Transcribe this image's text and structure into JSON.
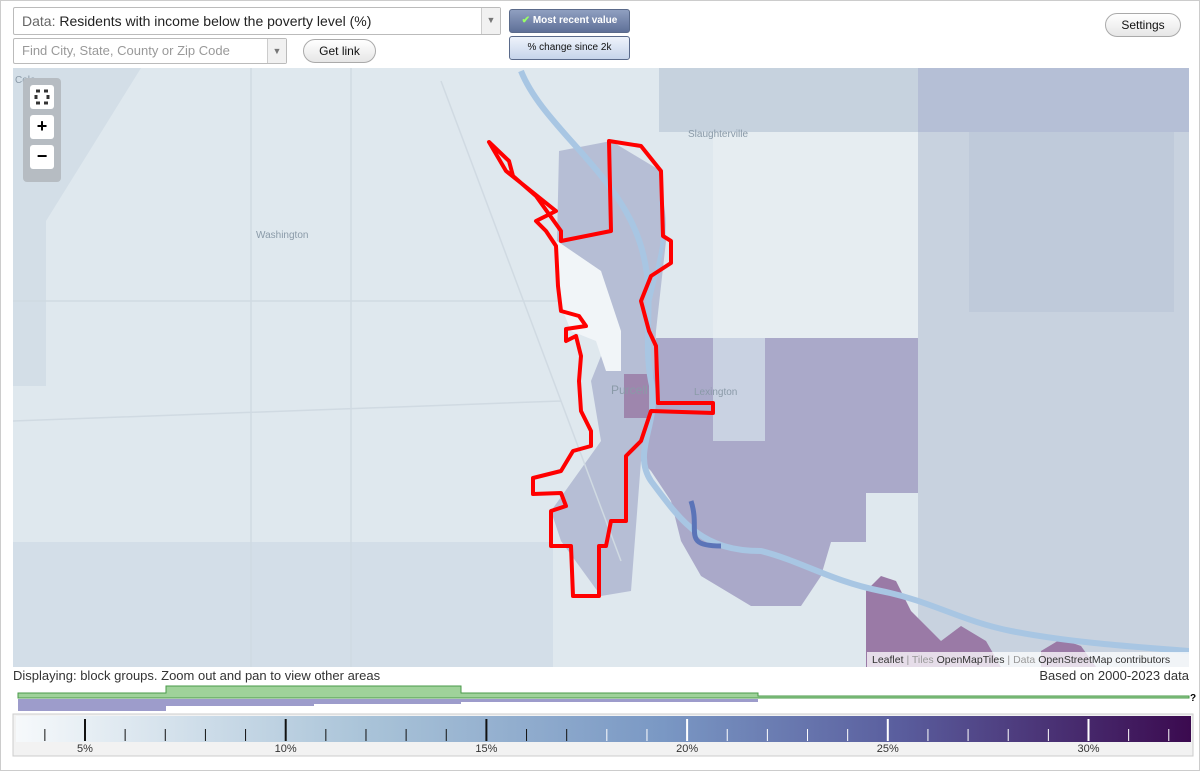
{
  "controls": {
    "data_label": "Data:",
    "data_value": "Residents with income below the poverty level (%)",
    "search_placeholder": "Find City, State, County or Zip Code",
    "get_link": "Get link",
    "most_recent": "Most recent value",
    "pct_change": "% change since 2k",
    "settings": "Settings"
  },
  "map": {
    "zoom_in": "+",
    "zoom_out": "−",
    "places": [
      "Cole",
      "Slaughterville",
      "Washington",
      "Purcell",
      "Lexington"
    ],
    "attribution": {
      "leaflet": "Leaflet",
      "tiles": "Tiles",
      "openmaptiles": "OpenMapTiles",
      "data": "Data",
      "osm": "OpenStreetMap",
      "contributors": "contributors"
    }
  },
  "status": {
    "displaying": "Displaying: block groups. Zoom out and pan to view other areas",
    "based_on": "Based on 2000-2023 data",
    "help": "?"
  },
  "legend": {
    "labels": [
      "5%",
      "10%",
      "15%",
      "20%",
      "25%",
      "30%"
    ]
  }
}
